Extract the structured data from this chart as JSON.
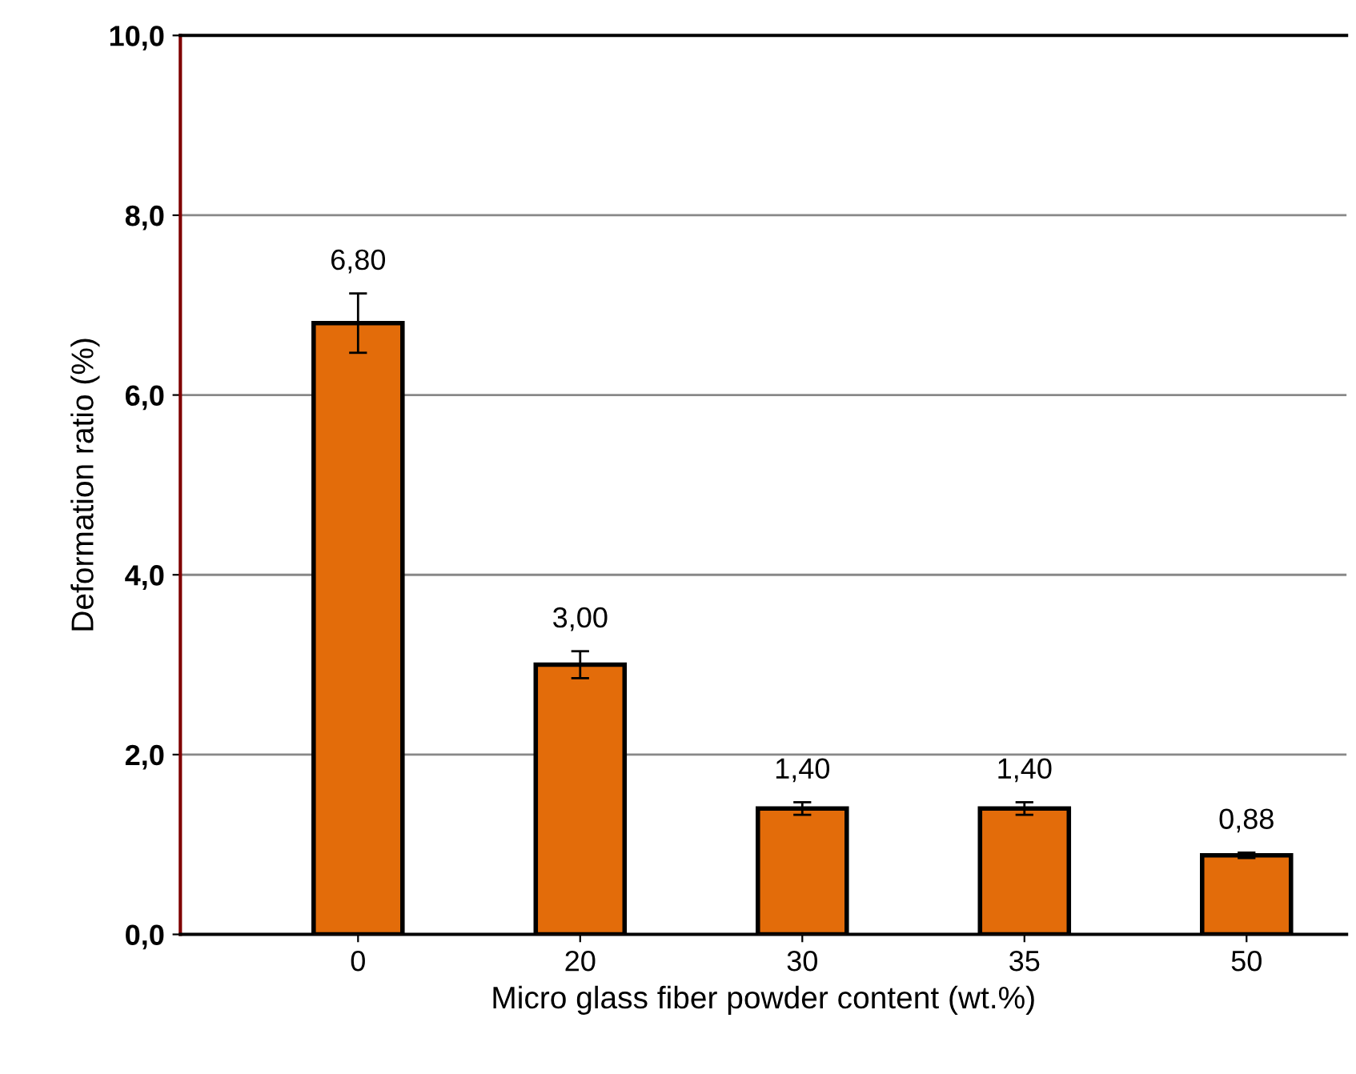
{
  "chart_data": {
    "type": "bar",
    "xlabel": "Micro glass fiber powder content (wt.%)",
    "ylabel": "Deformation ratio (%)",
    "categories": [
      "0",
      "20",
      "30",
      "35",
      "50"
    ],
    "values": [
      6.8,
      3.0,
      1.4,
      1.4,
      0.88
    ],
    "errors": [
      0.33,
      0.15,
      0.07,
      0.07,
      0.03
    ],
    "value_labels": [
      "6,80",
      "3,00",
      "1,40",
      "1,40",
      "0,88"
    ],
    "color": "#e36c0a",
    "ylim": [
      0,
      10
    ],
    "yticks": [
      {
        "value": 0,
        "label": "0,0"
      },
      {
        "value": 2,
        "label": "2,0"
      },
      {
        "value": 4,
        "label": "4,0"
      },
      {
        "value": 6,
        "label": "6,0"
      },
      {
        "value": 8,
        "label": "8,0"
      },
      {
        "value": 10,
        "label": "10,0"
      }
    ],
    "grid": "y",
    "legend": false
  }
}
